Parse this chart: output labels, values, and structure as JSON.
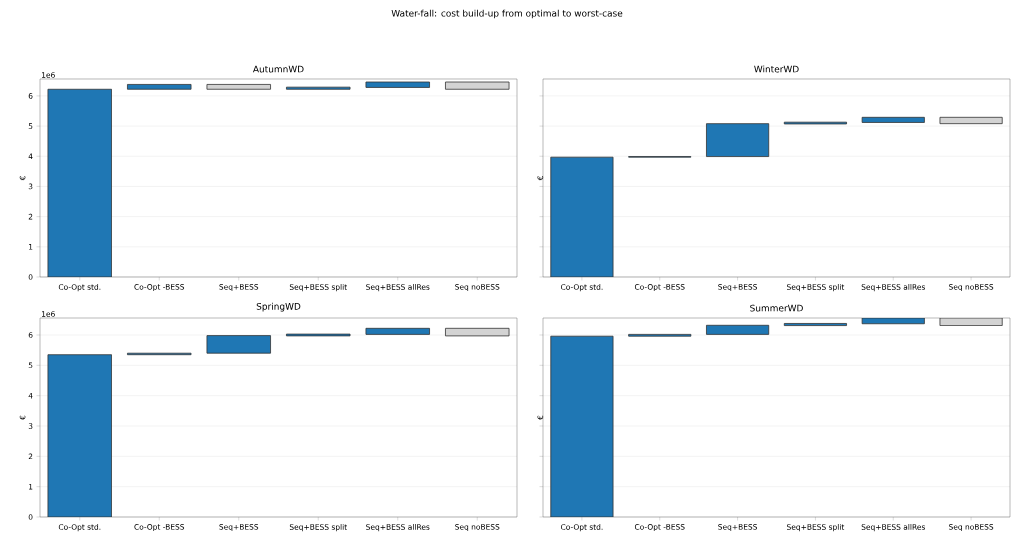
{
  "chart_data": [
    {
      "type": "bar",
      "title": "AutumnWD",
      "ylabel": "€",
      "annotations": [
        "Water-fall: cost build-up from optimal to worst-case",
        "1e6"
      ],
      "categories": [
        "Co-Opt std.",
        "Co-Opt -BESS",
        "Seq+BESS",
        "Seq+BESS split",
        "Seq+BESS allRes",
        "Seq noBESS"
      ],
      "values": [
        6.22,
        0.16,
        0.16,
        0.07,
        0.18,
        0.24
      ],
      "base": [
        0,
        6.22,
        6.22,
        6.22,
        6.28,
        6.22
      ],
      "colors": [
        "#1f77b4",
        "#1f77b4",
        "#d3d3d3",
        "#1f77b4",
        "#1f77b4",
        "#d3d3d3"
      ],
      "ylim": [
        0,
        6.56
      ],
      "yticks": [
        0,
        1,
        2,
        3,
        4,
        5,
        6
      ],
      "grid": "y"
    },
    {
      "type": "bar",
      "title": "WinterWD",
      "ylabel": "€",
      "categories": [
        "Co-Opt std.",
        "Co-Opt -BESS",
        "Seq+BESS",
        "Seq+BESS split",
        "Seq+BESS allRes",
        "Seq noBESS"
      ],
      "values": [
        3.97,
        0.02,
        1.09,
        0.06,
        0.17,
        0.21
      ],
      "base": [
        0,
        3.97,
        3.99,
        5.07,
        5.12,
        5.08
      ],
      "colors": [
        "#1f77b4",
        "#1f77b4",
        "#1f77b4",
        "#1f77b4",
        "#1f77b4",
        "#d3d3d3"
      ],
      "ylim": [
        0,
        6.56
      ],
      "yticks": [
        0,
        1,
        2,
        3,
        4,
        5,
        6
      ],
      "grid": "y",
      "tick_labels": "x"
    },
    {
      "type": "bar",
      "title": "SpringWD",
      "ylabel": "€",
      "annotations": [
        "1e6"
      ],
      "categories": [
        "Co-Opt std.",
        "Co-Opt -BESS",
        "Seq+BESS",
        "Seq+BESS split",
        "Seq+BESS allRes",
        "Seq noBESS"
      ],
      "values": [
        5.35,
        0.05,
        0.58,
        0.06,
        0.2,
        0.25
      ],
      "base": [
        0,
        5.35,
        5.4,
        5.97,
        6.02,
        5.97
      ],
      "colors": [
        "#1f77b4",
        "#1f77b4",
        "#1f77b4",
        "#1f77b4",
        "#1f77b4",
        "#d3d3d3"
      ],
      "ylim": [
        0,
        6.56
      ],
      "yticks": [
        0,
        1,
        2,
        3,
        4,
        5,
        6
      ],
      "grid": "y"
    },
    {
      "type": "bar",
      "title": "SummerWD",
      "ylabel": "€",
      "categories": [
        "Co-Opt std.",
        "Co-Opt -BESS",
        "Seq+BESS",
        "Seq+BESS split",
        "Seq+BESS allRes",
        "Seq noBESS"
      ],
      "values": [
        5.96,
        0.06,
        0.3,
        0.07,
        0.19,
        0.25
      ],
      "base": [
        0,
        5.96,
        6.02,
        6.31,
        6.37,
        6.31
      ],
      "colors": [
        "#1f77b4",
        "#1f77b4",
        "#1f77b4",
        "#1f77b4",
        "#1f77b4",
        "#d3d3d3"
      ],
      "ylim": [
        0,
        6.56
      ],
      "yticks": [
        0,
        1,
        2,
        3,
        4,
        5,
        6
      ],
      "grid": "y",
      "tick_labels": "x"
    }
  ]
}
